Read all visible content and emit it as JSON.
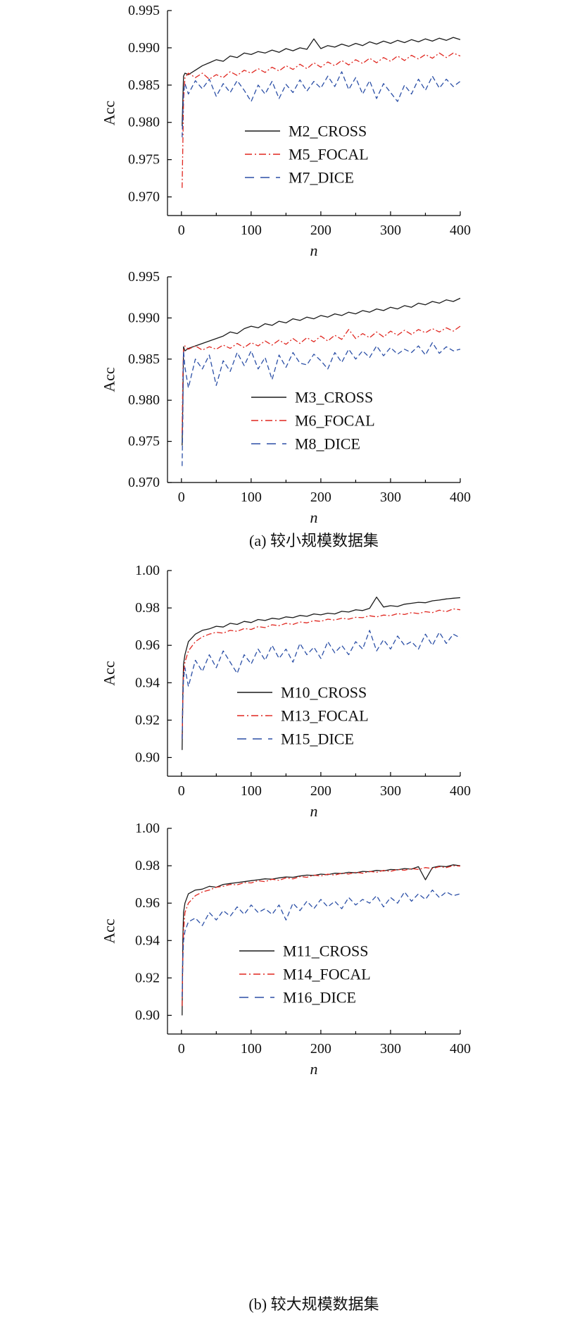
{
  "figure": {
    "captions": [
      "(a) 较小规模数据集",
      "(b) 较大规模数据集"
    ]
  },
  "chart_data": [
    {
      "type": "line",
      "xlabel": "n",
      "ylabel": "Acc",
      "xlim": [
        -20,
        400
      ],
      "ylim": [
        0.9675,
        0.995
      ],
      "xticks": [
        0,
        100,
        200,
        300,
        400
      ],
      "xtick_labels": [
        "0",
        "100",
        "200",
        "300",
        "400"
      ],
      "yticks": [
        0.995,
        0.99,
        0.985,
        0.98,
        0.975,
        0.97
      ],
      "ytick_labels": [
        "0.995",
        "0.990",
        "0.985",
        "0.980",
        "0.975",
        "0.970"
      ],
      "grid": false,
      "legend": "lower center",
      "x": [
        1,
        2,
        3,
        5,
        10,
        20,
        30,
        40,
        50,
        60,
        70,
        80,
        90,
        100,
        110,
        120,
        130,
        140,
        150,
        160,
        170,
        180,
        190,
        200,
        210,
        220,
        230,
        240,
        250,
        260,
        270,
        280,
        290,
        300,
        310,
        320,
        330,
        340,
        350,
        360,
        370,
        380,
        390,
        400
      ],
      "series": [
        {
          "name": "M2_CROSS",
          "color": "#1a1a1a",
          "line_style": "solid",
          "values": [
            0.9795,
            0.983,
            0.9862,
            0.9866,
            0.9864,
            0.987,
            0.9876,
            0.988,
            0.9884,
            0.9882,
            0.9889,
            0.9887,
            0.9893,
            0.9891,
            0.9895,
            0.9893,
            0.9897,
            0.9894,
            0.9899,
            0.9896,
            0.99,
            0.9898,
            0.9912,
            0.9899,
            0.9903,
            0.9901,
            0.9905,
            0.9902,
            0.9906,
            0.9903,
            0.9908,
            0.9905,
            0.9909,
            0.9906,
            0.991,
            0.9907,
            0.9911,
            0.9908,
            0.9912,
            0.9909,
            0.9913,
            0.991,
            0.9914,
            0.9911
          ]
        },
        {
          "name": "M5_FOCAL",
          "color": "#e0261f",
          "line_style": "dashdot",
          "values": [
            0.9712,
            0.977,
            0.983,
            0.986,
            0.9866,
            0.986,
            0.9866,
            0.9858,
            0.9864,
            0.986,
            0.9868,
            0.9863,
            0.987,
            0.9866,
            0.9872,
            0.9867,
            0.9874,
            0.9869,
            0.9876,
            0.9871,
            0.9878,
            0.9872,
            0.988,
            0.9874,
            0.9881,
            0.9876,
            0.9883,
            0.9877,
            0.9884,
            0.9879,
            0.9886,
            0.988,
            0.9887,
            0.9882,
            0.9889,
            0.9883,
            0.989,
            0.9885,
            0.9891,
            0.9886,
            0.9893,
            0.9887,
            0.9893,
            0.9889
          ]
        },
        {
          "name": "M7_DICE",
          "color": "#2b4fa6",
          "line_style": "dashed",
          "values": [
            0.978,
            0.981,
            0.984,
            0.9852,
            0.9838,
            0.9856,
            0.9845,
            0.9858,
            0.9835,
            0.9852,
            0.984,
            0.9856,
            0.9843,
            0.9828,
            0.985,
            0.9838,
            0.9855,
            0.9832,
            0.9851,
            0.984,
            0.9857,
            0.9842,
            0.9855,
            0.9846,
            0.9862,
            0.9848,
            0.9868,
            0.9844,
            0.986,
            0.9838,
            0.9856,
            0.9832,
            0.9852,
            0.984,
            0.9828,
            0.985,
            0.9838,
            0.9858,
            0.9843,
            0.9862,
            0.9846,
            0.9858,
            0.9848,
            0.9855
          ]
        }
      ]
    },
    {
      "type": "line",
      "xlabel": "n",
      "ylabel": "Acc",
      "xlim": [
        -20,
        400
      ],
      "ylim": [
        0.97,
        0.995
      ],
      "xticks": [
        0,
        100,
        200,
        300,
        400
      ],
      "xtick_labels": [
        "0",
        "100",
        "200",
        "300",
        "400"
      ],
      "yticks": [
        0.995,
        0.99,
        0.985,
        0.98,
        0.975,
        0.97
      ],
      "ytick_labels": [
        "0.995",
        "0.990",
        "0.985",
        "0.980",
        "0.975",
        "0.970"
      ],
      "grid": false,
      "legend": "lower center",
      "x": [
        1,
        2,
        3,
        5,
        10,
        20,
        30,
        40,
        50,
        60,
        70,
        80,
        90,
        100,
        110,
        120,
        130,
        140,
        150,
        160,
        170,
        180,
        190,
        200,
        210,
        220,
        230,
        240,
        250,
        260,
        270,
        280,
        290,
        300,
        310,
        320,
        330,
        340,
        350,
        360,
        370,
        380,
        390,
        400
      ],
      "series": [
        {
          "name": "M3_CROSS",
          "color": "#1a1a1a",
          "line_style": "solid",
          "values": [
            0.9745,
            0.98,
            0.9865,
            0.986,
            0.9863,
            0.9866,
            0.9869,
            0.9872,
            0.9875,
            0.9878,
            0.9883,
            0.9881,
            0.9887,
            0.989,
            0.9888,
            0.9893,
            0.9891,
            0.9896,
            0.9894,
            0.9899,
            0.9897,
            0.9901,
            0.9899,
            0.9903,
            0.9901,
            0.9905,
            0.9903,
            0.9907,
            0.9905,
            0.9909,
            0.9907,
            0.9911,
            0.9909,
            0.9913,
            0.9911,
            0.9915,
            0.9913,
            0.9918,
            0.9916,
            0.992,
            0.9918,
            0.9922,
            0.992,
            0.9924
          ]
        },
        {
          "name": "M6_FOCAL",
          "color": "#e0261f",
          "line_style": "dashdot",
          "values": [
            0.976,
            0.983,
            0.986,
            0.9866,
            0.9862,
            0.9866,
            0.9861,
            0.9865,
            0.9862,
            0.9867,
            0.9863,
            0.9869,
            0.9864,
            0.987,
            0.9866,
            0.9872,
            0.9867,
            0.9873,
            0.9868,
            0.9875,
            0.9869,
            0.9876,
            0.9871,
            0.9878,
            0.9872,
            0.9879,
            0.9874,
            0.9886,
            0.9875,
            0.9881,
            0.9876,
            0.9883,
            0.9877,
            0.9884,
            0.9879,
            0.9885,
            0.988,
            0.9886,
            0.9882,
            0.9887,
            0.9883,
            0.9888,
            0.9884,
            0.989
          ]
        },
        {
          "name": "M8_DICE",
          "color": "#2b4fa6",
          "line_style": "dashed",
          "values": [
            0.972,
            0.978,
            0.986,
            0.984,
            0.9815,
            0.985,
            0.9838,
            0.9855,
            0.9818,
            0.9848,
            0.9835,
            0.9858,
            0.9842,
            0.986,
            0.9838,
            0.9852,
            0.9825,
            0.9855,
            0.984,
            0.9858,
            0.9845,
            0.9843,
            0.9856,
            0.9848,
            0.9838,
            0.9858,
            0.9846,
            0.9862,
            0.985,
            0.986,
            0.9852,
            0.9866,
            0.9854,
            0.9864,
            0.9856,
            0.9862,
            0.9858,
            0.9866,
            0.9855,
            0.987,
            0.9857,
            0.9865,
            0.986,
            0.9862
          ]
        }
      ]
    },
    {
      "type": "line",
      "xlabel": "n",
      "ylabel": "Acc",
      "xlim": [
        -20,
        400
      ],
      "ylim": [
        0.89,
        1.0
      ],
      "xticks": [
        0,
        100,
        200,
        300,
        400
      ],
      "xtick_labels": [
        "0",
        "100",
        "200",
        "300",
        "400"
      ],
      "yticks": [
        1.0,
        0.98,
        0.96,
        0.94,
        0.92,
        0.9
      ],
      "ytick_labels": [
        "1.00",
        "0.98",
        "0.96",
        "0.94",
        "0.92",
        "0.90"
      ],
      "grid": false,
      "legend": "lower center",
      "x": [
        1,
        2,
        3,
        5,
        10,
        20,
        30,
        40,
        50,
        60,
        70,
        80,
        90,
        100,
        110,
        120,
        130,
        140,
        150,
        160,
        170,
        180,
        190,
        200,
        210,
        220,
        230,
        240,
        250,
        260,
        270,
        280,
        290,
        300,
        310,
        320,
        330,
        340,
        350,
        360,
        370,
        380,
        390,
        400
      ],
      "series": [
        {
          "name": "M10_CROSS",
          "color": "#1a1a1a",
          "line_style": "solid",
          "values": [
            0.904,
            0.935,
            0.95,
            0.955,
            0.962,
            0.966,
            0.968,
            0.9688,
            0.9702,
            0.9698,
            0.9718,
            0.9712,
            0.9728,
            0.9722,
            0.9738,
            0.9733,
            0.9745,
            0.974,
            0.9752,
            0.9748,
            0.976,
            0.9755,
            0.9768,
            0.9763,
            0.9772,
            0.9768,
            0.9782,
            0.9778,
            0.979,
            0.9786,
            0.9798,
            0.9858,
            0.9805,
            0.9812,
            0.9808,
            0.982,
            0.9825,
            0.983,
            0.9828,
            0.9838,
            0.9842,
            0.9848,
            0.9852,
            0.9855
          ]
        },
        {
          "name": "M13_FOCAL",
          "color": "#e0261f",
          "line_style": "dashdot",
          "values": [
            0.91,
            0.93,
            0.945,
            0.951,
            0.957,
            0.962,
            0.9645,
            0.966,
            0.967,
            0.9665,
            0.968,
            0.9675,
            0.969,
            0.9685,
            0.97,
            0.9695,
            0.971,
            0.9705,
            0.9718,
            0.9712,
            0.9725,
            0.972,
            0.9732,
            0.9728,
            0.974,
            0.9735,
            0.9745,
            0.974,
            0.975,
            0.9748,
            0.9758,
            0.9752,
            0.9762,
            0.9758,
            0.977,
            0.9765,
            0.9775,
            0.977,
            0.978,
            0.9775,
            0.9788,
            0.978,
            0.9795,
            0.979
          ]
        },
        {
          "name": "M15_DICE",
          "color": "#2b4fa6",
          "line_style": "dashed",
          "values": [
            0.91,
            0.93,
            0.942,
            0.948,
            0.938,
            0.952,
            0.946,
            0.955,
            0.948,
            0.957,
            0.951,
            0.945,
            0.955,
            0.95,
            0.958,
            0.952,
            0.96,
            0.953,
            0.958,
            0.951,
            0.961,
            0.955,
            0.959,
            0.953,
            0.962,
            0.956,
            0.96,
            0.955,
            0.962,
            0.958,
            0.968,
            0.957,
            0.963,
            0.958,
            0.965,
            0.96,
            0.962,
            0.958,
            0.966,
            0.96,
            0.967,
            0.961,
            0.966,
            0.964
          ]
        }
      ]
    },
    {
      "type": "line",
      "xlabel": "n",
      "ylabel": "Acc",
      "xlim": [
        -20,
        400
      ],
      "ylim": [
        0.89,
        1.0
      ],
      "xticks": [
        0,
        100,
        200,
        300,
        400
      ],
      "xtick_labels": [
        "0",
        "100",
        "200",
        "300",
        "400"
      ],
      "yticks": [
        1.0,
        0.98,
        0.96,
        0.94,
        0.92,
        0.9
      ],
      "ytick_labels": [
        "1.00",
        "0.98",
        "0.96",
        "0.94",
        "0.92",
        "0.90"
      ],
      "grid": false,
      "legend": "lower center",
      "x": [
        1,
        2,
        3,
        5,
        10,
        20,
        30,
        40,
        50,
        60,
        70,
        80,
        90,
        100,
        110,
        120,
        130,
        140,
        150,
        160,
        170,
        180,
        190,
        200,
        210,
        220,
        230,
        240,
        250,
        260,
        270,
        280,
        290,
        300,
        310,
        320,
        330,
        340,
        350,
        360,
        370,
        380,
        390,
        400
      ],
      "series": [
        {
          "name": "M11_CROSS",
          "color": "#1a1a1a",
          "line_style": "solid",
          "values": [
            0.9,
            0.94,
            0.955,
            0.96,
            0.965,
            0.967,
            0.9675,
            0.969,
            0.9685,
            0.97,
            0.9705,
            0.971,
            0.9715,
            0.972,
            0.9725,
            0.973,
            0.9728,
            0.9735,
            0.974,
            0.9738,
            0.9745,
            0.975,
            0.9748,
            0.9755,
            0.9752,
            0.976,
            0.9758,
            0.9765,
            0.9762,
            0.977,
            0.9768,
            0.9775,
            0.9772,
            0.978,
            0.9778,
            0.9785,
            0.9782,
            0.9795,
            0.9725,
            0.979,
            0.9798,
            0.9795,
            0.9805,
            0.98
          ]
        },
        {
          "name": "M14_FOCAL",
          "color": "#e0261f",
          "line_style": "dashdot",
          "values": [
            0.905,
            0.93,
            0.945,
            0.955,
            0.96,
            0.964,
            0.966,
            0.967,
            0.9685,
            0.969,
            0.97,
            0.9698,
            0.971,
            0.9708,
            0.972,
            0.9715,
            0.9728,
            0.9722,
            0.9735,
            0.973,
            0.9742,
            0.9738,
            0.975,
            0.9745,
            0.9755,
            0.975,
            0.976,
            0.9756,
            0.9765,
            0.976,
            0.977,
            0.9765,
            0.9775,
            0.977,
            0.978,
            0.9776,
            0.9785,
            0.978,
            0.979,
            0.9785,
            0.9795,
            0.979,
            0.98,
            0.9798
          ]
        },
        {
          "name": "M16_DICE",
          "color": "#2b4fa6",
          "line_style": "dashed",
          "values": [
            0.91,
            0.93,
            0.94,
            0.945,
            0.95,
            0.952,
            0.948,
            0.955,
            0.951,
            0.956,
            0.953,
            0.958,
            0.954,
            0.959,
            0.955,
            0.957,
            0.954,
            0.959,
            0.951,
            0.96,
            0.956,
            0.961,
            0.957,
            0.962,
            0.958,
            0.961,
            0.957,
            0.963,
            0.959,
            0.962,
            0.96,
            0.964,
            0.958,
            0.963,
            0.96,
            0.966,
            0.961,
            0.965,
            0.962,
            0.967,
            0.963,
            0.966,
            0.964,
            0.965
          ]
        }
      ]
    }
  ]
}
